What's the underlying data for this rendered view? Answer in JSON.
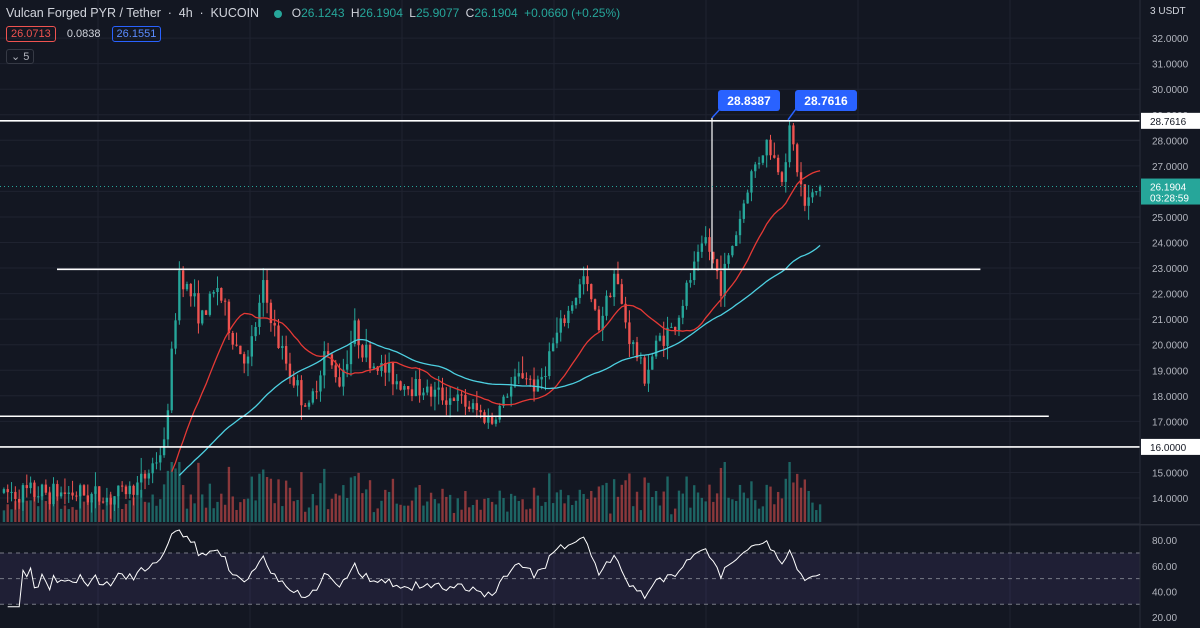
{
  "header": {
    "symbol": "Vulcan Forged PYR / Tether",
    "interval": "4h",
    "exchange": "KUCOIN",
    "open_label": "O",
    "open": "26.1243",
    "high_label": "H",
    "high": "26.1904",
    "low_label": "L",
    "low": "25.9077",
    "close_label": "C",
    "close": "26.1904",
    "change": "+0.0660 (+0.25%)",
    "ma_red": "26.0713",
    "ma_spread": "0.0838",
    "ma_blue": "26.1551",
    "indicator_toggle": "5",
    "currency_prefix": "3",
    "currency": "USDT"
  },
  "colors": {
    "background": "#131722",
    "up": "#26a69a",
    "down": "#ef5350",
    "ma_fast": "#e53935",
    "ma_slow": "#4dd0e1",
    "level_line": "#ffffff",
    "label_blue": "#2962ff",
    "rsi_band": "#7e57c2"
  },
  "chart_data": [
    {
      "type": "candlestick",
      "title": "Vulcan Forged PYR / Tether · 4h · KUCOIN",
      "y_axis_side": "right",
      "ylim": [
        13.5,
        33.0
      ],
      "yticks": [
        "14.0000",
        "15.0000",
        "16.0000",
        "17.0000",
        "18.0000",
        "19.0000",
        "20.0000",
        "21.0000",
        "22.0000",
        "23.0000",
        "24.0000",
        "25.0000",
        "26.0000",
        "27.0000",
        "28.0000",
        "29.0000",
        "30.0000",
        "31.0000",
        "32.0000"
      ],
      "last_price": "26.1904",
      "countdown": "03:28:59",
      "horizontal_levels": [
        {
          "value": 28.7616,
          "label": "28.7616",
          "x_from": 0.0,
          "x_to": 1.0
        },
        {
          "value": 22.95,
          "x_from": 0.05,
          "x_to": 0.86
        },
        {
          "value": 17.2,
          "x_from": 0.0,
          "x_to": 0.92
        },
        {
          "value": 16.0,
          "label": "16.0000",
          "x_from": 0.0,
          "x_to": 1.0
        }
      ],
      "callouts": [
        {
          "label": "28.8387",
          "value": 28.8387
        },
        {
          "label": "28.7616",
          "value": 28.7616
        }
      ],
      "price_key_points": [
        [
          0,
          14.2
        ],
        [
          18,
          14.2
        ],
        [
          28,
          14.0
        ],
        [
          36,
          14.6
        ],
        [
          42,
          16.0
        ],
        [
          46,
          22.9
        ],
        [
          52,
          21.0
        ],
        [
          56,
          22.3
        ],
        [
          60,
          20.2
        ],
        [
          64,
          19.3
        ],
        [
          68,
          22.2
        ],
        [
          72,
          20.0
        ],
        [
          76,
          18.6
        ],
        [
          80,
          17.4
        ],
        [
          84,
          19.7
        ],
        [
          88,
          18.6
        ],
        [
          92,
          20.6
        ],
        [
          96,
          19.3
        ],
        [
          100,
          19.0
        ],
        [
          104,
          18.5
        ],
        [
          108,
          18.4
        ],
        [
          112,
          18.1
        ],
        [
          118,
          17.9
        ],
        [
          124,
          17.4
        ],
        [
          128,
          17.0
        ],
        [
          132,
          18.1
        ],
        [
          136,
          18.9
        ],
        [
          140,
          18.3
        ],
        [
          144,
          20.0
        ],
        [
          148,
          21.3
        ],
        [
          152,
          22.6
        ],
        [
          156,
          20.8
        ],
        [
          160,
          22.8
        ],
        [
          164,
          20.3
        ],
        [
          168,
          18.8
        ],
        [
          172,
          20.3
        ],
        [
          176,
          20.7
        ],
        [
          180,
          22.6
        ],
        [
          184,
          24.1
        ],
        [
          188,
          22.4
        ],
        [
          192,
          24.4
        ],
        [
          196,
          26.7
        ],
        [
          200,
          27.9
        ],
        [
          204,
          26.6
        ],
        [
          206,
          28.4
        ],
        [
          208,
          26.9
        ],
        [
          210,
          25.4
        ],
        [
          214,
          26.19
        ]
      ],
      "n_candles": 215,
      "volume": {
        "max_relative_height": 1.0
      }
    },
    {
      "type": "line",
      "title": "RSI",
      "ylim": [
        17,
        87
      ],
      "yticks": [
        "20.00",
        "40.00",
        "60.00",
        "80.00"
      ],
      "bands": [
        70,
        50,
        30
      ],
      "last_value": 53
    }
  ]
}
